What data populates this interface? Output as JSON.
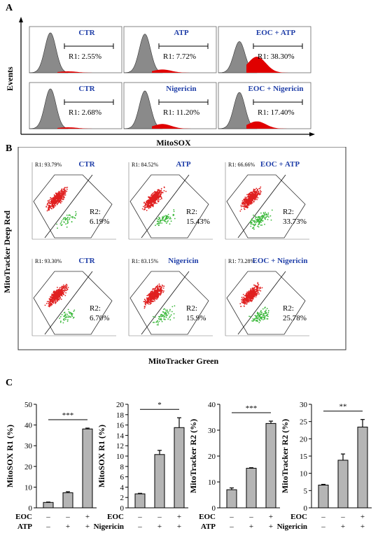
{
  "panels": {
    "a": "A",
    "b": "B",
    "c": "C"
  },
  "panel_a": {
    "y_label": "Events",
    "x_label": "MitoSOX",
    "plots": [
      {
        "label": "CTR",
        "r_text": "R1: 2.55%",
        "pos_fraction": 0.0255
      },
      {
        "label": "ATP",
        "r_text": "R1: 7.72%",
        "pos_fraction": 0.0772
      },
      {
        "label": "EOC + ATP",
        "r_text": "R1: 38.30%",
        "pos_fraction": 0.383
      },
      {
        "label": "CTR",
        "r_text": "R1: 2.68%",
        "pos_fraction": 0.0268
      },
      {
        "label": "Nigericin",
        "r_text": "R1: 11.20%",
        "pos_fraction": 0.112
      },
      {
        "label": "EOC + Nigericin",
        "r_text": "R1: 17.40%",
        "pos_fraction": 0.174
      }
    ]
  },
  "panel_b": {
    "y_label": "MitoTracker Deep Red",
    "x_label": "MitoTracker Green",
    "plots": [
      {
        "label": "CTR",
        "r1_text": "R1: 93.79%",
        "r2_head": "R2:",
        "r2_val": "6.19%",
        "green_fraction": 0.0619
      },
      {
        "label": "ATP",
        "r1_text": "R1: 84.52%",
        "r2_head": "R2:",
        "r2_val": "15.43%",
        "green_fraction": 0.1543
      },
      {
        "label": "EOC + ATP",
        "r1_text": "R1: 66.66%",
        "r2_head": "R2:",
        "r2_val": "33.73%",
        "green_fraction": 0.3373
      },
      {
        "label": "CTR",
        "r1_text": "R1: 93.30%",
        "r2_head": "R2:",
        "r2_val": "6.70%",
        "green_fraction": 0.067
      },
      {
        "label": "Nigericin",
        "r1_text": "R1: 83.15%",
        "r2_head": "R2:",
        "r2_val": "15.9%",
        "green_fraction": 0.159
      },
      {
        "label": "EOC + Nigericin",
        "r1_text": "R1: 73.28%",
        "r2_head": "R2:",
        "r2_val": "25.78%",
        "green_fraction": 0.2578
      }
    ]
  },
  "chart_data": [
    {
      "type": "bar",
      "ylabel": "MitoSOX R1 (%)",
      "ylim": [
        0,
        50
      ],
      "ticks": [
        0,
        10,
        20,
        30,
        40,
        50
      ],
      "row_labels": [
        "EOC",
        "ATP"
      ],
      "row_signs": [
        [
          "–",
          "–",
          "+"
        ],
        [
          "–",
          "+",
          "+"
        ]
      ],
      "values": [
        2.6,
        7.3,
        38.1
      ],
      "errors": [
        0.2,
        0.5,
        0.4
      ],
      "significance": "***"
    },
    {
      "type": "bar",
      "ylabel": "MitoSOX R1 (%)",
      "ylim": [
        0,
        20
      ],
      "ticks": [
        0,
        2,
        4,
        6,
        8,
        10,
        12,
        14,
        16,
        18,
        20
      ],
      "row_labels": [
        "EOC",
        "Nigericin"
      ],
      "row_signs": [
        [
          "–",
          "–",
          "+"
        ],
        [
          "–",
          "+",
          "+"
        ]
      ],
      "values": [
        2.7,
        10.3,
        15.5
      ],
      "errors": [
        0.1,
        0.8,
        1.9
      ],
      "significance": "*"
    },
    {
      "type": "bar",
      "ylabel": "MitoTracker R2 (%)",
      "ylim": [
        0,
        40
      ],
      "ticks": [
        0,
        10,
        20,
        30,
        40
      ],
      "row_labels": [
        "EOC",
        "ATP"
      ],
      "row_signs": [
        [
          "–",
          "–",
          "+"
        ],
        [
          "–",
          "+",
          "+"
        ]
      ],
      "values": [
        7.0,
        15.3,
        32.6
      ],
      "errors": [
        0.7,
        0.2,
        0.9
      ],
      "significance": "***"
    },
    {
      "type": "bar",
      "ylabel": "MitoTracker R2 (%)",
      "ylim": [
        0,
        30
      ],
      "ticks": [
        0,
        5,
        10,
        15,
        20,
        25,
        30
      ],
      "row_labels": [
        "EOC",
        "Nigericin"
      ],
      "row_signs": [
        [
          "–",
          "–",
          "+"
        ],
        [
          "–",
          "+",
          "+"
        ]
      ],
      "values": [
        6.6,
        13.8,
        23.4
      ],
      "errors": [
        0.2,
        1.8,
        2.2
      ],
      "significance": "**"
    }
  ],
  "colors": {
    "label_blue": "#1f3ea8",
    "hist_gray": "#8a8a8a",
    "hist_red": "#e00000",
    "dot_red": "#e02020",
    "dot_green": "#3ab83a",
    "bar_gray": "#b5b5b5"
  }
}
